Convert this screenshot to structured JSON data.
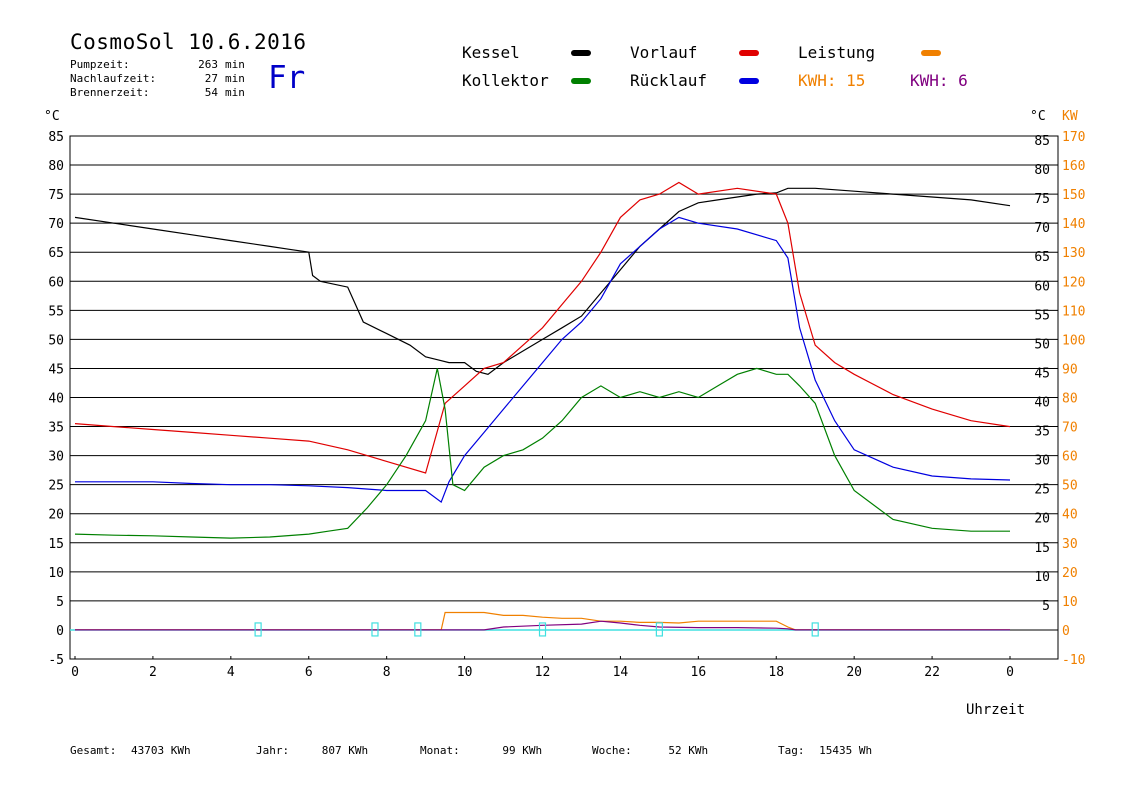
{
  "title": "CosmoSol 10.6.2016",
  "info": [
    {
      "label": "Pumpzeit:",
      "value": "263",
      "unit": "min"
    },
    {
      "label": "Nachlaufzeit:",
      "value": "27",
      "unit": "min"
    },
    {
      "label": "Brennerzeit:",
      "value": "54",
      "unit": "min"
    }
  ],
  "weekday": "Fr",
  "legend": {
    "kessel": {
      "label": "Kessel",
      "color": "#000000"
    },
    "kollektor": {
      "label": "Kollektor",
      "color": "#008000"
    },
    "vorlauf": {
      "label": "Vorlauf",
      "color": "#e00000"
    },
    "ruecklauf": {
      "label": "Rücklauf",
      "color": "#0000e0"
    },
    "leistung": {
      "label": "Leistung",
      "color": "#f08000"
    },
    "kwh1": {
      "label": "KWH:",
      "value": "15",
      "color": "#f08000"
    },
    "kwh2": {
      "label": "KWH:",
      "value": "6",
      "color": "#800080"
    }
  },
  "footer": [
    {
      "label": "Gesamt:",
      "value": "43703 KWh"
    },
    {
      "label": "Jahr:",
      "value": "807 KWh"
    },
    {
      "label": "Monat:",
      "value": "99 KWh"
    },
    {
      "label": "Woche:",
      "value": "52 KWh"
    },
    {
      "label": "Tag:",
      "value": "15435 Wh"
    }
  ],
  "chart_data": {
    "type": "line",
    "xlabel": "Uhrzeit",
    "xlim": [
      0,
      24
    ],
    "x_ticks": [
      "0",
      "2",
      "4",
      "6",
      "8",
      "10",
      "12",
      "14",
      "16",
      "18",
      "20",
      "22",
      "0"
    ],
    "ylim": [
      -5,
      85
    ],
    "y_ticks_left": [
      "85",
      "80",
      "75",
      "70",
      "65",
      "60",
      "55",
      "50",
      "45",
      "40",
      "35",
      "30",
      "25",
      "20",
      "15",
      "10",
      "5",
      "0",
      "-5"
    ],
    "y_ticks_right": [
      "85",
      "80",
      "75",
      "70",
      "65",
      "60",
      "55",
      "50",
      "45",
      "40",
      "35",
      "30",
      "25",
      "20",
      "15",
      "10",
      "5"
    ],
    "y2_ticks": [
      "170",
      "160",
      "150",
      "140",
      "130",
      "120",
      "110",
      "100",
      "90",
      "80",
      "70",
      "60",
      "50",
      "40",
      "30",
      "20",
      "10",
      "0",
      "-10"
    ],
    "ylabel_left": "°C",
    "ylabel_right": "°C",
    "y2label": "KW",
    "grid": true,
    "baseline": {
      "value": 0,
      "color": "#40e0e0"
    },
    "pump_markers_x": [
      4.7,
      7.7,
      8.8,
      12.0,
      15.0,
      19.0
    ],
    "series": [
      {
        "name": "Kessel",
        "color": "#000000",
        "x": [
          0,
          1,
          2,
          3,
          4,
          5,
          5.5,
          6,
          6.1,
          6.3,
          7,
          7.2,
          7.4,
          8,
          8.6,
          9,
          9.3,
          9.6,
          10,
          10.3,
          10.6,
          11,
          11.5,
          12,
          12.5,
          13,
          13.5,
          14,
          14.5,
          15,
          15.5,
          16,
          16.5,
          17,
          17.5,
          18,
          18.3,
          19,
          20,
          21,
          22,
          23,
          24
        ],
        "y": [
          71,
          70,
          69,
          68,
          67,
          66,
          65.5,
          65,
          61,
          60,
          59,
          56,
          53,
          51,
          49,
          47,
          46.5,
          46,
          46,
          44.5,
          44,
          46,
          48,
          50,
          52,
          54,
          58,
          62,
          66,
          69,
          72,
          73.5,
          74,
          74.5,
          75,
          75.2,
          76,
          76,
          75.5,
          75,
          74.5,
          74,
          73
        ]
      },
      {
        "name": "Vorlauf",
        "color": "#e00000",
        "x": [
          0,
          1,
          2,
          3,
          4,
          5,
          6,
          7,
          8,
          9,
          9.5,
          10,
          10.5,
          11,
          11.5,
          12,
          12.5,
          13,
          13.5,
          14,
          14.5,
          15,
          15.5,
          16,
          17,
          18,
          18.3,
          18.6,
          19,
          19.5,
          20,
          21,
          22,
          23,
          24
        ],
        "y": [
          35.5,
          35,
          34.5,
          34,
          33.5,
          33,
          32.5,
          31,
          29,
          27,
          39,
          42,
          45,
          46,
          49,
          52,
          56,
          60,
          65,
          71,
          74,
          75,
          77,
          75,
          76,
          75,
          70,
          58,
          49,
          46,
          44,
          40.5,
          38,
          36,
          35
        ]
      },
      {
        "name": "Rücklauf",
        "color": "#0000e0",
        "x": [
          0,
          1,
          2,
          3,
          4,
          5,
          6,
          7,
          8,
          9,
          9.4,
          9.6,
          10,
          10.5,
          11,
          11.5,
          12,
          12.5,
          13,
          13.5,
          14,
          14.5,
          15,
          15.5,
          16,
          17,
          18,
          18.3,
          18.6,
          19,
          19.5,
          20,
          21,
          22,
          23,
          24
        ],
        "y": [
          25.5,
          25.5,
          25.5,
          25.2,
          25,
          25,
          24.8,
          24.5,
          24,
          24,
          22,
          25.5,
          30,
          34,
          38,
          42,
          46,
          50,
          53,
          57,
          63,
          66,
          69,
          71,
          70,
          69,
          67,
          64,
          52,
          43,
          36,
          31,
          28,
          26.5,
          26,
          25.8
        ]
      },
      {
        "name": "Kollektor",
        "color": "#008000",
        "x": [
          0,
          1,
          2,
          3,
          4,
          5,
          6,
          6.5,
          7,
          7.5,
          8,
          8.5,
          9,
          9.3,
          9.5,
          9.7,
          10,
          10.5,
          11,
          11.5,
          12,
          12.5,
          13,
          13.5,
          14,
          14.5,
          15,
          15.5,
          16,
          16.5,
          17,
          17.5,
          18,
          18.3,
          18.6,
          19,
          19.5,
          20,
          21,
          22,
          23,
          24
        ],
        "y": [
          16.5,
          16.3,
          16.2,
          16,
          15.8,
          16,
          16.5,
          17,
          17.5,
          21,
          25,
          30,
          36,
          45,
          38,
          25,
          24,
          28,
          30,
          31,
          33,
          36,
          40,
          42,
          40,
          41,
          40,
          41,
          40,
          42,
          44,
          45,
          44,
          44,
          42,
          39,
          30,
          24,
          19,
          17.5,
          17,
          17
        ]
      },
      {
        "name": "Leistung",
        "color": "#f08000",
        "x": [
          0,
          9.4,
          9.5,
          10,
          10.5,
          11,
          11.5,
          12,
          12.5,
          13,
          13.5,
          14,
          14.5,
          15,
          15.5,
          16,
          16.5,
          17,
          17.5,
          18,
          18.3,
          18.5,
          24
        ],
        "y": [
          0,
          0,
          3,
          3,
          3,
          2.5,
          2.5,
          2.2,
          2,
          2,
          1.5,
          1.5,
          1.3,
          1.3,
          1.2,
          1.5,
          1.5,
          1.5,
          1.5,
          1.5,
          0.5,
          0,
          0
        ]
      },
      {
        "name": "KWH 6",
        "color": "#800080",
        "x": [
          0,
          10.5,
          11,
          12,
          13,
          13.5,
          14,
          14.5,
          15,
          16,
          17,
          18,
          18.3,
          18.5,
          24
        ],
        "y": [
          0,
          0,
          0.5,
          0.8,
          1.0,
          1.5,
          1.2,
          0.8,
          0.5,
          0.4,
          0.4,
          0.3,
          0.2,
          0,
          0
        ]
      }
    ]
  }
}
